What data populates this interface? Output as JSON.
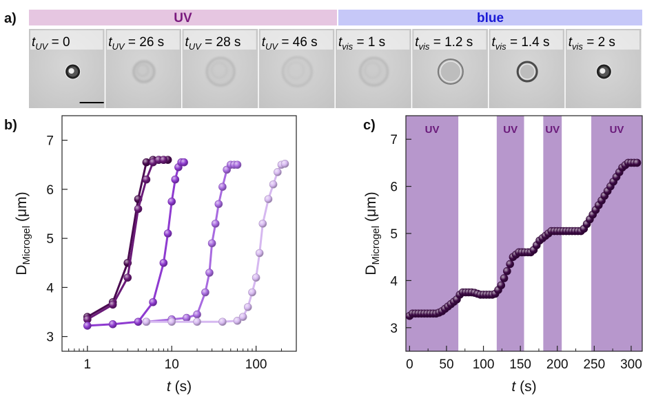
{
  "panel_a": {
    "letter": "a)",
    "bands": [
      {
        "label": "UV",
        "color": "#e6c6e1",
        "text_color": "#7b1a7e"
      },
      {
        "label": "blue",
        "color": "#c6c8f8",
        "text_color": "#1a1ad6"
      }
    ],
    "frames": [
      {
        "var": "t",
        "sub": "UV",
        "value": " = 0",
        "state": "small"
      },
      {
        "var": "t",
        "sub": "UV",
        "value": " = 26 s",
        "state": "swelling"
      },
      {
        "var": "t",
        "sub": "UV",
        "value": " = 28 s",
        "state": "swollen"
      },
      {
        "var": "t",
        "sub": "UV",
        "value": " = 46 s",
        "state": "max"
      },
      {
        "var": "t",
        "sub": "vis",
        "value": " = 1 s",
        "state": "swollen"
      },
      {
        "var": "t",
        "sub": "vis",
        "value": " = 1.2 s",
        "state": "shrinking"
      },
      {
        "var": "t",
        "sub": "vis",
        "value": " = 1.4 s",
        "state": "shrunk"
      },
      {
        "var": "t",
        "sub": "vis",
        "value": " = 2 s",
        "state": "small"
      }
    ]
  },
  "chart_data": [
    {
      "panel": "b)",
      "type": "scatter",
      "xscale": "log",
      "xlim": [
        0.5,
        300
      ],
      "ylim": [
        2.7,
        7.5
      ],
      "xticks": [
        1,
        10,
        100
      ],
      "yticks": [
        3,
        4,
        5,
        6,
        7
      ],
      "xlabel": {
        "var": "t",
        "unit": " (s)"
      },
      "ylabel": {
        "main": "D",
        "sub": "Microgel",
        "unit": " (μm)"
      },
      "series": [
        {
          "color": "#4a0a50",
          "x": [
            1,
            2,
            3,
            4,
            5,
            6,
            7,
            8,
            9
          ],
          "y": [
            3.4,
            3.7,
            4.5,
            5.8,
            6.55,
            6.6,
            6.6,
            6.6,
            6.6
          ]
        },
        {
          "color": "#6a1a78",
          "x": [
            1,
            2,
            3,
            4,
            5,
            6,
            7,
            8
          ],
          "y": [
            3.35,
            3.65,
            4.2,
            5.6,
            6.2,
            6.55,
            6.6,
            6.6
          ]
        },
        {
          "color": "#8e3ad0",
          "x": [
            1,
            2,
            4,
            6,
            8,
            9,
            10,
            11,
            12,
            13,
            14
          ],
          "y": [
            3.22,
            3.25,
            3.3,
            3.7,
            4.5,
            5.1,
            5.75,
            6.2,
            6.45,
            6.55,
            6.55
          ]
        },
        {
          "color": "#a86ae0",
          "x": [
            5,
            10,
            15,
            20,
            25,
            28,
            30,
            33,
            36,
            40,
            45,
            50,
            55,
            60
          ],
          "y": [
            3.3,
            3.35,
            3.38,
            3.45,
            3.9,
            4.3,
            4.9,
            5.3,
            5.7,
            6.05,
            6.4,
            6.5,
            6.5,
            6.5
          ]
        },
        {
          "color": "#d6b8f0",
          "x": [
            5,
            10,
            20,
            40,
            60,
            70,
            80,
            90,
            100,
            110,
            120,
            140,
            160,
            180,
            200,
            220
          ],
          "y": [
            3.3,
            3.3,
            3.3,
            3.3,
            3.32,
            3.4,
            3.6,
            3.9,
            4.2,
            4.7,
            5.3,
            5.8,
            6.1,
            6.35,
            6.5,
            6.52
          ]
        }
      ]
    },
    {
      "panel": "c)",
      "type": "scatter",
      "xlim": [
        -5,
        315
      ],
      "ylim": [
        2.5,
        7.5
      ],
      "xticks": [
        0,
        50,
        100,
        150,
        200,
        250,
        300
      ],
      "yticks": [
        3,
        4,
        5,
        6,
        7
      ],
      "xlabel": {
        "var": "t",
        "unit": " (s)"
      },
      "ylabel": {
        "main": "D",
        "sub": "Microgel",
        "unit": " (μm)"
      },
      "uv_shading": [
        {
          "label": "UV",
          "x0": -5,
          "x1": 66
        },
        {
          "label": "UV",
          "x0": 118,
          "x1": 155
        },
        {
          "label": "UV",
          "x0": 181,
          "x1": 206
        },
        {
          "label": "UV",
          "x0": 246,
          "x1": 315
        }
      ],
      "series": [
        {
          "color": "#3d0a45",
          "x": [
            0,
            4,
            8,
            12,
            16,
            20,
            24,
            28,
            32,
            36,
            40,
            44,
            48,
            52,
            56,
            60,
            64,
            68,
            72,
            76,
            80,
            84,
            88,
            92,
            96,
            100,
            104,
            108,
            112,
            116,
            120,
            124,
            128,
            132,
            136,
            140,
            144,
            148,
            152,
            156,
            160,
            164,
            168,
            172,
            176,
            180,
            184,
            188,
            192,
            196,
            200,
            204,
            208,
            212,
            216,
            220,
            224,
            228,
            232,
            236,
            240,
            244,
            248,
            252,
            256,
            260,
            264,
            268,
            272,
            276,
            280,
            284,
            288,
            292,
            296,
            300,
            304,
            308
          ],
          "y": [
            3.25,
            3.3,
            3.3,
            3.3,
            3.3,
            3.3,
            3.3,
            3.3,
            3.3,
            3.3,
            3.32,
            3.35,
            3.4,
            3.45,
            3.5,
            3.55,
            3.6,
            3.7,
            3.75,
            3.75,
            3.75,
            3.75,
            3.74,
            3.72,
            3.7,
            3.7,
            3.7,
            3.7,
            3.7,
            3.72,
            3.8,
            3.9,
            4.05,
            4.2,
            4.35,
            4.5,
            4.55,
            4.6,
            4.6,
            4.6,
            4.6,
            4.6,
            4.65,
            4.75,
            4.85,
            4.9,
            4.95,
            5.0,
            5.05,
            5.05,
            5.05,
            5.05,
            5.05,
            5.05,
            5.05,
            5.05,
            5.05,
            5.05,
            5.05,
            5.1,
            5.2,
            5.3,
            5.4,
            5.5,
            5.6,
            5.7,
            5.8,
            5.9,
            6.0,
            6.1,
            6.2,
            6.3,
            6.4,
            6.45,
            6.5,
            6.5,
            6.5,
            6.5
          ]
        }
      ]
    }
  ]
}
